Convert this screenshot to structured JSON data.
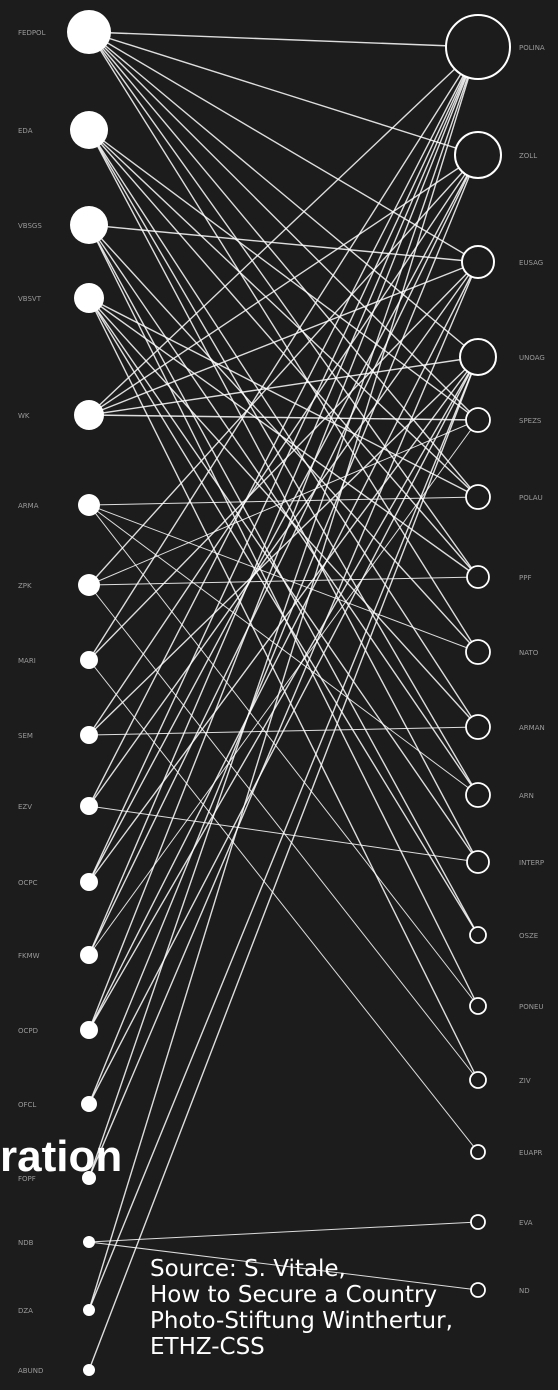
{
  "overlay": {
    "title_fragment": "ration",
    "source_lines": [
      "Source: S. Vitale,",
      "How to Secure a Country",
      "Photo-Stiftung Winthertur,",
      "ETHZ-CSS"
    ]
  },
  "left_nodes": [
    "FEDPOL",
    "EDA",
    "VBSGS",
    "VBSVT",
    "WK",
    "ARMA",
    "ZPK",
    "MARI",
    "SEM",
    "EZV",
    "OCPC",
    "FKMW",
    "OCPD",
    "OFCL",
    "FOPF",
    "NDB",
    "DZA",
    "ABUND"
  ],
  "right_nodes": [
    "POLINA",
    "ZOLL",
    "EUSAG",
    "UNOAG",
    "SPEZS",
    "POLAU",
    "PPF",
    "NATO",
    "ARMAN",
    "ARN",
    "INTERP",
    "OSZE",
    "PONEU",
    "ZIV",
    "EUAPR",
    "EVA",
    "ND"
  ],
  "edges": [
    [
      0,
      0
    ],
    [
      0,
      1
    ],
    [
      0,
      2
    ],
    [
      0,
      3
    ],
    [
      0,
      4
    ],
    [
      0,
      5
    ],
    [
      0,
      6
    ],
    [
      0,
      7
    ],
    [
      1,
      4
    ],
    [
      1,
      5
    ],
    [
      1,
      6
    ],
    [
      1,
      8
    ],
    [
      1,
      9
    ],
    [
      1,
      10
    ],
    [
      2,
      2
    ],
    [
      2,
      7
    ],
    [
      2,
      9
    ],
    [
      2,
      11
    ],
    [
      2,
      12
    ],
    [
      3,
      5
    ],
    [
      3,
      6
    ],
    [
      3,
      8
    ],
    [
      3,
      10
    ],
    [
      3,
      11
    ],
    [
      3,
      13
    ],
    [
      4,
      0
    ],
    [
      4,
      1
    ],
    [
      4,
      2
    ],
    [
      4,
      3
    ],
    [
      4,
      4
    ],
    [
      5,
      5
    ],
    [
      5,
      7
    ],
    [
      5,
      9
    ],
    [
      5,
      12
    ],
    [
      6,
      4
    ],
    [
      6,
      6
    ],
    [
      6,
      1
    ],
    [
      6,
      13
    ],
    [
      7,
      0
    ],
    [
      7,
      2
    ],
    [
      7,
      14
    ],
    [
      8,
      1
    ],
    [
      8,
      3
    ],
    [
      8,
      8
    ],
    [
      9,
      0
    ],
    [
      9,
      2
    ],
    [
      9,
      10
    ],
    [
      10,
      1
    ],
    [
      10,
      3
    ],
    [
      10,
      0
    ],
    [
      11,
      0
    ],
    [
      11,
      1
    ],
    [
      11,
      4
    ],
    [
      12,
      0
    ],
    [
      12,
      2
    ],
    [
      12,
      3
    ],
    [
      13,
      1
    ],
    [
      13,
      3
    ],
    [
      14,
      0
    ],
    [
      14,
      2
    ],
    [
      15,
      16
    ],
    [
      15,
      15
    ],
    [
      16,
      3
    ],
    [
      16,
      0
    ],
    [
      17,
      3
    ]
  ],
  "colors": {
    "background": "#1c1c1c",
    "node": "#ffffff",
    "edge": "#ffffff",
    "label": "#9a9a9a"
  }
}
